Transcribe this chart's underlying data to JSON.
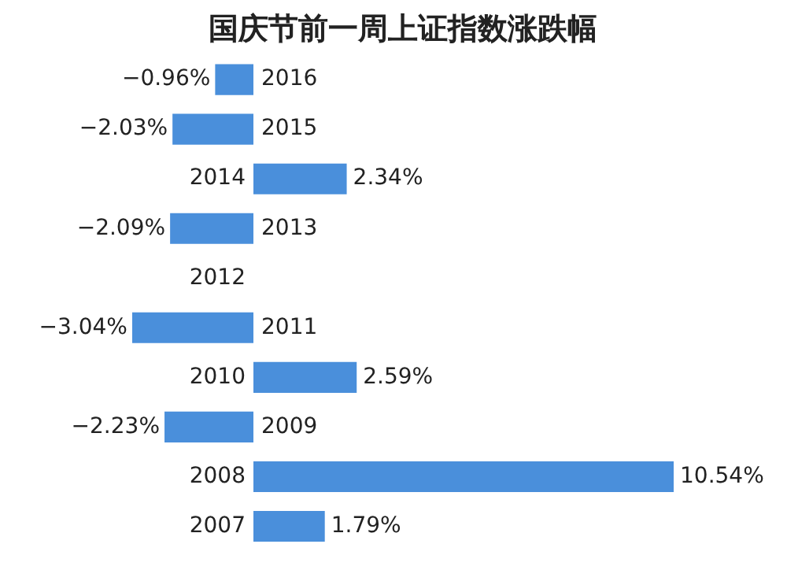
{
  "chart_data": {
    "type": "bar",
    "orientation": "horizontal",
    "title": "国庆节前一周上证指数涨跌幅",
    "categories": [
      "2016",
      "2015",
      "2014",
      "2013",
      "2012",
      "2011",
      "2010",
      "2009",
      "2008",
      "2007"
    ],
    "values": [
      -0.96,
      -2.03,
      2.34,
      -2.09,
      null,
      -3.04,
      2.59,
      -2.23,
      10.54,
      1.79
    ],
    "value_labels": [
      "−0.96%",
      "−2.03%",
      "2.34%",
      "−2.09%",
      null,
      "−3.04%",
      "2.59%",
      "−2.23%",
      "10.54%",
      "1.79%"
    ],
    "color": "#4a8fdb"
  }
}
